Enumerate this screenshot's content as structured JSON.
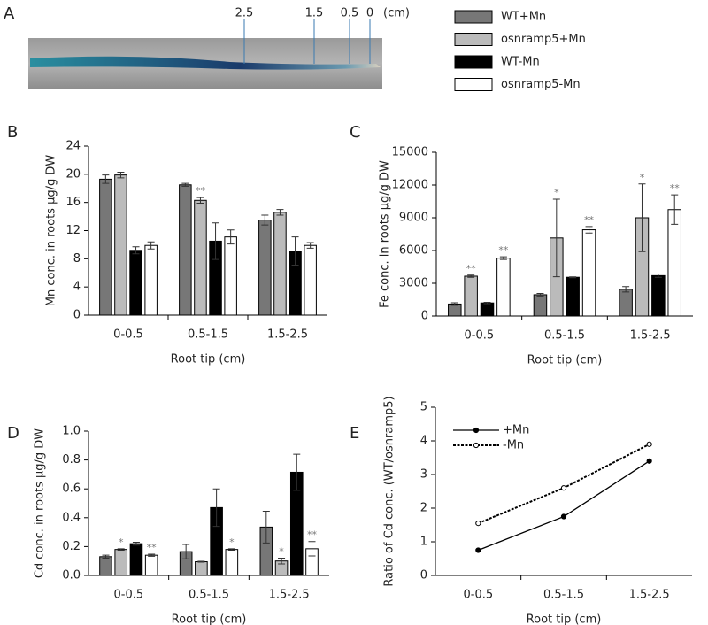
{
  "root_image": {
    "label": "A",
    "marks": [
      "2.5",
      "1.5",
      "0.5",
      "0"
    ],
    "unit": "(cm)"
  },
  "chart_data": [
    {
      "type": "bar",
      "label": "B",
      "ylabel": "Mn conc. in roots  µg/g DW",
      "xlabel": "Root tip (cm)",
      "categories": [
        "0-0.5",
        "0.5-1.5",
        "1.5-2.5"
      ],
      "ylim": [
        0,
        24
      ],
      "yticks": [
        0,
        4,
        8,
        12,
        16,
        20,
        24
      ],
      "series": [
        {
          "name": "WT+Mn",
          "color": "#777777",
          "values": [
            19.3,
            18.5,
            13.5
          ],
          "errors": [
            0.6,
            0.2,
            0.7
          ]
        },
        {
          "name": "osnramp5+Mn",
          "color": "#bbbbbb",
          "values": [
            19.9,
            16.3,
            14.6
          ],
          "errors": [
            0.4,
            0.4,
            0.4
          ],
          "stars": [
            null,
            "**",
            null
          ]
        },
        {
          "name": "WT-Mn",
          "color": "#000000",
          "values": [
            9.2,
            10.5,
            9.1
          ],
          "errors": [
            0.5,
            2.6,
            2.0
          ]
        },
        {
          "name": "osnramp5-Mn",
          "color": "#ffffff",
          "values": [
            9.9,
            11.1,
            9.9
          ],
          "errors": [
            0.5,
            1.0,
            0.4
          ]
        }
      ]
    },
    {
      "type": "bar",
      "label": "C",
      "ylabel": "Fe conc. in roots  µg/g DW",
      "xlabel": "Root tip (cm)",
      "categories": [
        "0-0.5",
        "0.5-1.5",
        "1.5-2.5"
      ],
      "ylim": [
        0,
        15000
      ],
      "yticks": [
        0,
        3000,
        6000,
        9000,
        12000,
        15000
      ],
      "series": [
        {
          "name": "WT+Mn",
          "color": "#777777",
          "values": [
            1100,
            1950,
            2450
          ],
          "errors": [
            120,
            120,
            250
          ]
        },
        {
          "name": "osnramp5+Mn",
          "color": "#bbbbbb",
          "values": [
            3650,
            7150,
            9000
          ],
          "errors": [
            100,
            3550,
            3100
          ],
          "stars": [
            "**",
            "*",
            "*"
          ]
        },
        {
          "name": "WT-Mn",
          "color": "#000000",
          "values": [
            1200,
            3550,
            3700
          ],
          "errors": [
            60,
            40,
            150
          ]
        },
        {
          "name": "osnramp5-Mn",
          "color": "#ffffff",
          "values": [
            5300,
            7900,
            9750
          ],
          "errors": [
            120,
            300,
            1350
          ],
          "stars": [
            "**",
            "**",
            "**"
          ]
        }
      ]
    },
    {
      "type": "bar",
      "label": "D",
      "ylabel": "Cd conc. in roots  µg/g DW",
      "xlabel": "Root tip (cm)",
      "categories": [
        "0-0.5",
        "0.5-1.5",
        "1.5-2.5"
      ],
      "ylim": [
        0,
        1
      ],
      "yticks": [
        {
          "value": 0,
          "label": "0.0"
        },
        0.2,
        0.4,
        0.6,
        0.8,
        {
          "value": 1,
          "label": "1.0"
        }
      ],
      "series": [
        {
          "name": "WT+Mn",
          "color": "#777777",
          "values": [
            0.13,
            0.165,
            0.335
          ],
          "errors": [
            0.01,
            0.05,
            0.11
          ]
        },
        {
          "name": "osnramp5+Mn",
          "color": "#bbbbbb",
          "values": [
            0.18,
            0.095,
            0.1
          ],
          "errors": [
            0.005,
            0.003,
            0.02
          ],
          "stars": [
            "*",
            null,
            "*"
          ]
        },
        {
          "name": "WT-Mn",
          "color": "#000000",
          "values": [
            0.22,
            0.47,
            0.715
          ],
          "errors": [
            0.01,
            0.13,
            0.125
          ]
        },
        {
          "name": "osnramp5-Mn",
          "color": "#ffffff",
          "values": [
            0.14,
            0.18,
            0.185
          ],
          "errors": [
            0.007,
            0.005,
            0.05
          ],
          "stars": [
            "**",
            "*",
            "**"
          ]
        }
      ]
    },
    {
      "type": "line",
      "label": "E",
      "ylabel": "Ratio of Cd conc. (WT/osnramp5)",
      "xlabel": "Root tip (cm)",
      "categories": [
        "0-0.5",
        "0.5-1.5",
        "1.5-2.5"
      ],
      "ylim": [
        0,
        5
      ],
      "yticks": [
        0,
        1,
        2,
        3,
        4,
        5
      ],
      "series": [
        {
          "name": "+Mn",
          "color": "#000000",
          "values": [
            0.75,
            1.75,
            3.4
          ]
        },
        {
          "name": "-Mn",
          "color": "#000000",
          "dashed": true,
          "values": [
            1.55,
            2.6,
            3.9
          ]
        }
      ]
    }
  ]
}
